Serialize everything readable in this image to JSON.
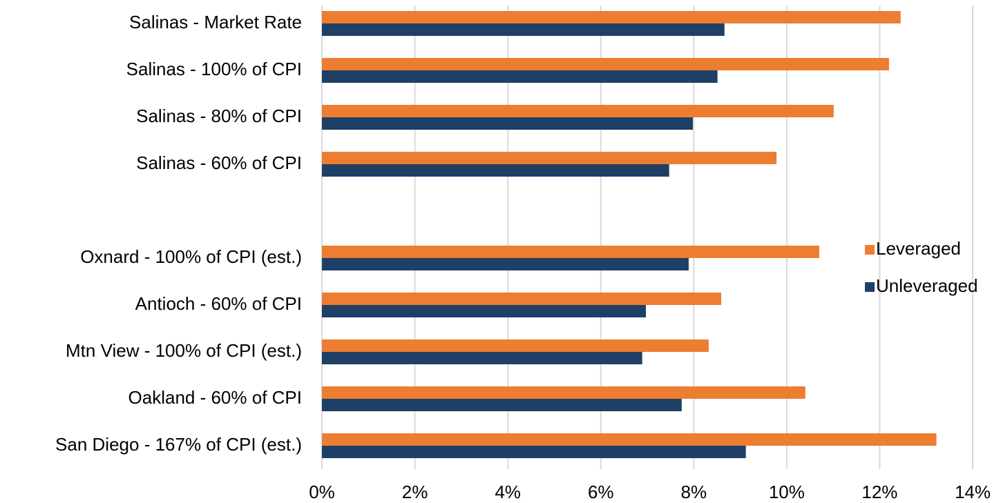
{
  "chart_data": {
    "type": "hbar",
    "categories": [
      "Salinas - Market Rate",
      "Salinas - 100% of CPI",
      "Salinas - 80% of CPI",
      "Salinas - 60% of CPI",
      null,
      "Oxnard - 100% of CPI (est.)",
      "Antioch - 60% of CPI",
      "Mtn View - 100% of CPI (est.)",
      "Oakland - 60% of CPI",
      "San Diego - 167% of CPI (est.)"
    ],
    "series": [
      {
        "name": "Leveraged",
        "color": "#ed7d31",
        "values": [
          12.45,
          12.2,
          11.01,
          9.78,
          null,
          10.7,
          8.59,
          8.32,
          10.4,
          13.22
        ]
      },
      {
        "name": "Unleveraged",
        "color": "#1e3f66",
        "values": [
          8.66,
          8.51,
          7.98,
          7.47,
          null,
          7.89,
          6.97,
          6.89,
          7.74,
          9.12
        ]
      }
    ],
    "xlim": [
      0,
      14
    ],
    "xticks": [
      {
        "value": 0,
        "label": "0%"
      },
      {
        "value": 2,
        "label": "2%"
      },
      {
        "value": 4,
        "label": "4%"
      },
      {
        "value": 6,
        "label": "6%"
      },
      {
        "value": 8,
        "label": "8%"
      },
      {
        "value": 10,
        "label": "10%"
      },
      {
        "value": 12,
        "label": "12%"
      },
      {
        "value": 14,
        "label": "14%"
      }
    ],
    "grid": true,
    "legend": "right"
  }
}
